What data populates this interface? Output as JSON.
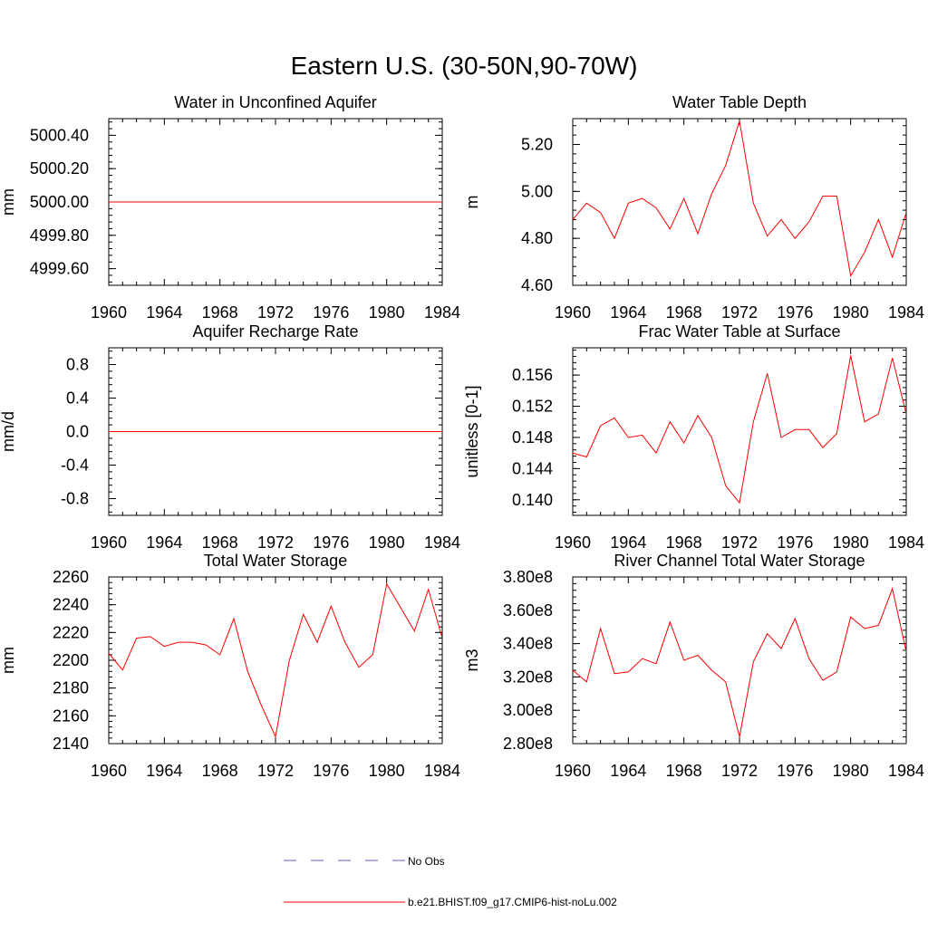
{
  "figure": {
    "title": "Eastern U.S. (30-50N,90-70W)"
  },
  "legend": {
    "obs_label": "No Obs",
    "obs_color": "#5b5bc8",
    "model_label": "b.e21.BHIST.f09_g17.CMIP6-hist-noLu.002",
    "model_color": "#ff0000"
  },
  "chart_data": [
    {
      "type": "line",
      "title": "Water in Unconfined Aquifer",
      "ylabel": "mm",
      "xlim": [
        1960,
        1984
      ],
      "ylim": [
        4999.5,
        5000.5
      ],
      "xticks": [
        "1960",
        "1964",
        "1968",
        "1972",
        "1976",
        "1980",
        "1984"
      ],
      "yticks": [
        "4999.60",
        "4999.80",
        "5000.00",
        "5000.20",
        "5000.40"
      ],
      "x": [
        1960,
        1961,
        1962,
        1963,
        1964,
        1965,
        1966,
        1967,
        1968,
        1969,
        1970,
        1971,
        1972,
        1973,
        1974,
        1975,
        1976,
        1977,
        1978,
        1979,
        1980,
        1981,
        1982,
        1983,
        1984
      ],
      "values": [
        5000.0,
        5000.0,
        5000.0,
        5000.0,
        5000.0,
        5000.0,
        5000.0,
        5000.0,
        5000.0,
        5000.0,
        5000.0,
        5000.0,
        5000.0,
        5000.0,
        5000.0,
        5000.0,
        5000.0,
        5000.0,
        5000.0,
        5000.0,
        5000.0,
        5000.0,
        5000.0,
        5000.0,
        5000.0
      ],
      "color": "#ff0000"
    },
    {
      "type": "line",
      "title": "Water Table Depth",
      "ylabel": "m",
      "xlim": [
        1960,
        1984
      ],
      "ylim": [
        4.6,
        5.31
      ],
      "xticks": [
        "1960",
        "1964",
        "1968",
        "1972",
        "1976",
        "1980",
        "1984"
      ],
      "yticks": [
        "4.60",
        "4.80",
        "5.00",
        "5.20"
      ],
      "x": [
        1960,
        1961,
        1962,
        1963,
        1964,
        1965,
        1966,
        1967,
        1968,
        1969,
        1970,
        1971,
        1972,
        1973,
        1974,
        1975,
        1976,
        1977,
        1978,
        1979,
        1980,
        1981,
        1982,
        1983,
        1984
      ],
      "values": [
        4.88,
        4.95,
        4.91,
        4.8,
        4.95,
        4.97,
        4.93,
        4.84,
        4.97,
        4.82,
        4.99,
        5.11,
        5.3,
        4.95,
        4.81,
        4.88,
        4.8,
        4.87,
        4.98,
        4.98,
        4.64,
        4.74,
        4.88,
        4.72,
        4.91
      ],
      "color": "#ff0000"
    },
    {
      "type": "line",
      "title": "Aquifer Recharge Rate",
      "ylabel": "mm/d",
      "xlim": [
        1960,
        1984
      ],
      "ylim": [
        -1.0,
        1.0
      ],
      "xticks": [
        "1960",
        "1964",
        "1968",
        "1972",
        "1976",
        "1980",
        "1984"
      ],
      "yticks": [
        "-0.8",
        "-0.4",
        "0.0",
        "0.4",
        "0.8"
      ],
      "x": [
        1960,
        1961,
        1962,
        1963,
        1964,
        1965,
        1966,
        1967,
        1968,
        1969,
        1970,
        1971,
        1972,
        1973,
        1974,
        1975,
        1976,
        1977,
        1978,
        1979,
        1980,
        1981,
        1982,
        1983,
        1984
      ],
      "values": [
        0,
        0,
        0,
        0,
        0,
        0,
        0,
        0,
        0,
        0,
        0,
        0,
        0,
        0,
        0,
        0,
        0,
        0,
        0,
        0,
        0,
        0,
        0,
        0,
        0
      ],
      "color": "#ff0000"
    },
    {
      "type": "line",
      "title": "Frac Water Table at Surface",
      "ylabel": "unitless [0-1]",
      "xlim": [
        1960,
        1984
      ],
      "ylim": [
        0.138,
        0.1595
      ],
      "xticks": [
        "1960",
        "1964",
        "1968",
        "1972",
        "1976",
        "1980",
        "1984"
      ],
      "yticks": [
        "0.140",
        "0.144",
        "0.148",
        "0.152",
        "0.156"
      ],
      "x": [
        1960,
        1961,
        1962,
        1963,
        1964,
        1965,
        1966,
        1967,
        1968,
        1969,
        1970,
        1971,
        1972,
        1973,
        1974,
        1975,
        1976,
        1977,
        1978,
        1979,
        1980,
        1981,
        1982,
        1983,
        1984
      ],
      "values": [
        0.146,
        0.1455,
        0.1495,
        0.1505,
        0.148,
        0.1483,
        0.146,
        0.15,
        0.1473,
        0.1508,
        0.148,
        0.1418,
        0.1396,
        0.15,
        0.1562,
        0.148,
        0.149,
        0.149,
        0.1467,
        0.1485,
        0.1585,
        0.15,
        0.151,
        0.1582,
        0.151
      ],
      "color": "#ff0000"
    },
    {
      "type": "line",
      "title": "Total Water Storage",
      "ylabel": "mm",
      "xlim": [
        1960,
        1984
      ],
      "ylim": [
        2140,
        2260
      ],
      "xticks": [
        "1960",
        "1964",
        "1968",
        "1972",
        "1976",
        "1980",
        "1984"
      ],
      "yticks": [
        "2140",
        "2160",
        "2180",
        "2200",
        "2220",
        "2240",
        "2260"
      ],
      "x": [
        1960,
        1961,
        1962,
        1963,
        1964,
        1965,
        1966,
        1967,
        1968,
        1969,
        1970,
        1971,
        1972,
        1973,
        1974,
        1975,
        1976,
        1977,
        1978,
        1979,
        1980,
        1981,
        1982,
        1983,
        1984
      ],
      "values": [
        2205,
        2193,
        2216,
        2217,
        2210,
        2213,
        2213,
        2211,
        2204,
        2230,
        2192,
        2167,
        2145,
        2200,
        2233,
        2213,
        2239,
        2213,
        2195,
        2204,
        2255,
        2238,
        2221,
        2251,
        2216
      ],
      "color": "#ff0000"
    },
    {
      "type": "line",
      "title": "River Channel Total Water Storage",
      "ylabel": "m3",
      "xlim": [
        1960,
        1984
      ],
      "ylim": [
        280000000,
        380000000
      ],
      "xticks": [
        "1960",
        "1964",
        "1968",
        "1972",
        "1976",
        "1980",
        "1984"
      ],
      "yticks": [
        "2.80e8",
        "3.00e8",
        "3.20e8",
        "3.40e8",
        "3.60e8",
        "3.80e8"
      ],
      "x": [
        1960,
        1961,
        1962,
        1963,
        1964,
        1965,
        1966,
        1967,
        1968,
        1969,
        1970,
        1971,
        1972,
        1973,
        1974,
        1975,
        1976,
        1977,
        1978,
        1979,
        1980,
        1981,
        1982,
        1983,
        1984
      ],
      "values": [
        324000000,
        317000000,
        349000000,
        322000000,
        323000000,
        331000000,
        328000000,
        353000000,
        330000000,
        333000000,
        324000000,
        317000000,
        284000000,
        329000000,
        346000000,
        337000000,
        355000000,
        331000000,
        318000000,
        323000000,
        356000000,
        349000000,
        351000000,
        373000000,
        335000000
      ],
      "color": "#ff0000"
    }
  ]
}
